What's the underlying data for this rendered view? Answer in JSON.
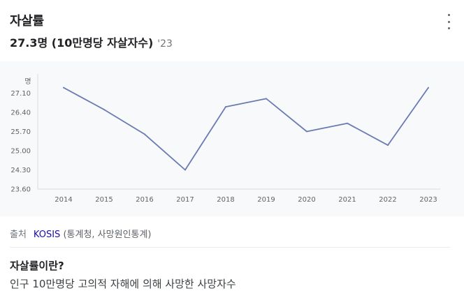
{
  "card": {
    "title": "자살률",
    "value": "27.3명 (10만명당 자살자수)",
    "year": "'23",
    "menu_icon": "more-vert-icon"
  },
  "chart_data": {
    "type": "line",
    "title": "",
    "xlabel": "",
    "ylabel": "명",
    "x": [
      "2014",
      "2015",
      "2016",
      "2017",
      "2018",
      "2019",
      "2020",
      "2021",
      "2022",
      "2023"
    ],
    "series": [
      {
        "values": [
          27.3,
          26.5,
          25.6,
          24.3,
          26.6,
          26.9,
          25.7,
          26.0,
          25.2,
          27.3
        ]
      }
    ],
    "yticks": [
      "27.10",
      "26.40",
      "25.70",
      "25.00",
      "24.30",
      "23.60"
    ],
    "ylim": [
      23.6,
      27.8
    ],
    "grid": false,
    "line_color": "#6a7bb3"
  },
  "source": {
    "label": "출처",
    "link": "KOSIS",
    "detail": "(통계청, 사망원인통계)"
  },
  "definition": {
    "title": "자살률이란?",
    "text": "인구 10만명당 고의적 자해에 의해 사망한 사망자수"
  }
}
